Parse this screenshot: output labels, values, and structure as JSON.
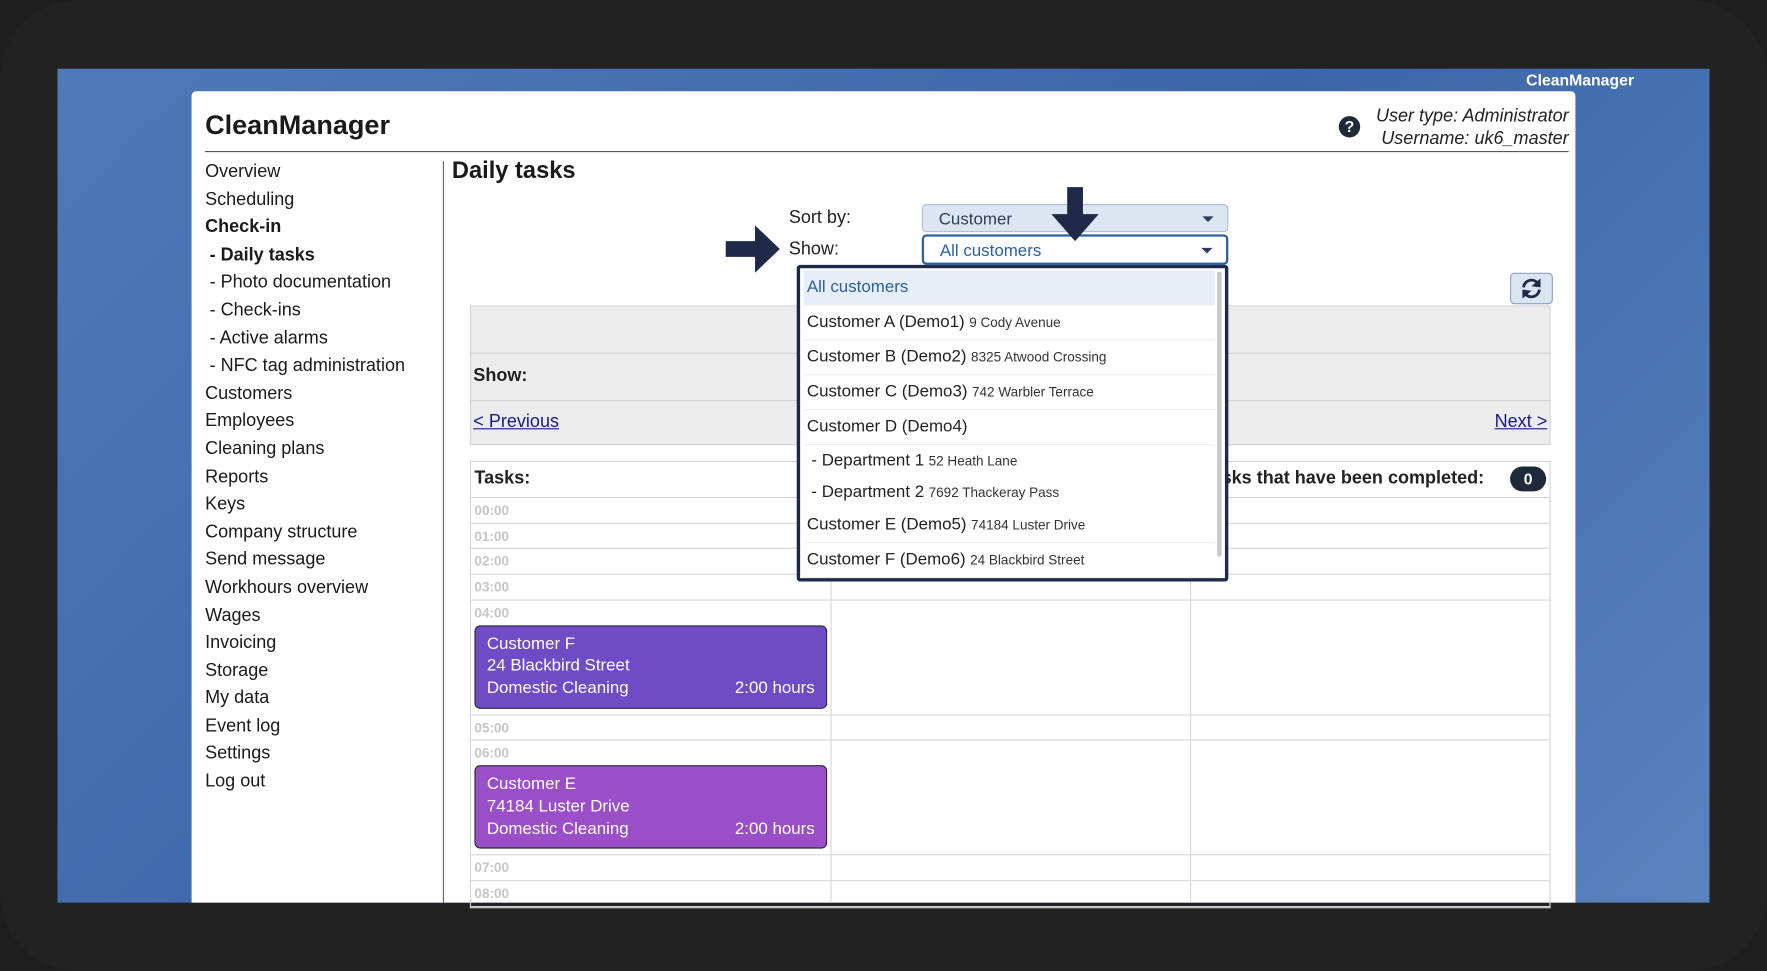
{
  "window_title": "CleanManager",
  "header": {
    "title": "CleanManager",
    "user_type": "User type: Administrator",
    "username": "Username: uk6_master"
  },
  "nav": [
    "Overview",
    "Scheduling",
    "Check-in",
    "- Daily tasks",
    "- Photo documentation",
    "- Check-ins",
    "- Active alarms",
    "- NFC tag administration",
    "Customers",
    "Employees",
    "Cleaning plans",
    "Reports",
    "Keys",
    "Company structure",
    "Send message",
    "Workhours overview",
    "Wages",
    "Invoicing",
    "Storage",
    "My data",
    "Event log",
    "Settings",
    "Log out"
  ],
  "content": {
    "title": "Daily tasks",
    "sort_label": "Sort by:",
    "sort_value": "Customer",
    "show_label": "Show:",
    "show_value": "All customers",
    "filter_show_label": "Show:",
    "previous": "< Previous",
    "next": "Next >",
    "tasks_label": "Tasks:",
    "completed_label": "Tasks that have been completed:",
    "completed_count": "0"
  },
  "dropdown": [
    {
      "label": "All customers"
    },
    {
      "label": "Customer A (Demo1)",
      "address": "9 Cody Avenue"
    },
    {
      "label": "Customer B (Demo2)",
      "address": "8325 Atwood Crossing"
    },
    {
      "label": "Customer C (Demo3)",
      "address": "742 Warbler Terrace"
    },
    {
      "label": "Customer D (Demo4)"
    },
    {
      "label": "- Department 1",
      "address": "52 Heath Lane"
    },
    {
      "label": "- Department 2",
      "address": "7692 Thackeray Pass"
    },
    {
      "label": "Customer E (Demo5)",
      "address": "74184 Luster Drive"
    },
    {
      "label": "Customer F (Demo6)",
      "address": "24 Blackbird Street"
    }
  ],
  "schedule": [
    {
      "time": "00:00"
    },
    {
      "time": "01:00"
    },
    {
      "time": "02:00"
    },
    {
      "time": "03:00"
    },
    {
      "time": "04:00",
      "task": {
        "customer": "Customer F",
        "address": "24 Blackbird Street",
        "service": "Domestic Cleaning",
        "duration": "2:00 hours",
        "color": "#6f4bc6"
      }
    },
    {
      "time": "05:00"
    },
    {
      "time": "06:00",
      "task": {
        "customer": "Customer E",
        "address": "74184 Luster Drive",
        "service": "Domestic Cleaning",
        "duration": "2:00 hours",
        "color": "#9a4ec8"
      }
    },
    {
      "time": "07:00"
    },
    {
      "time": "08:00"
    }
  ]
}
